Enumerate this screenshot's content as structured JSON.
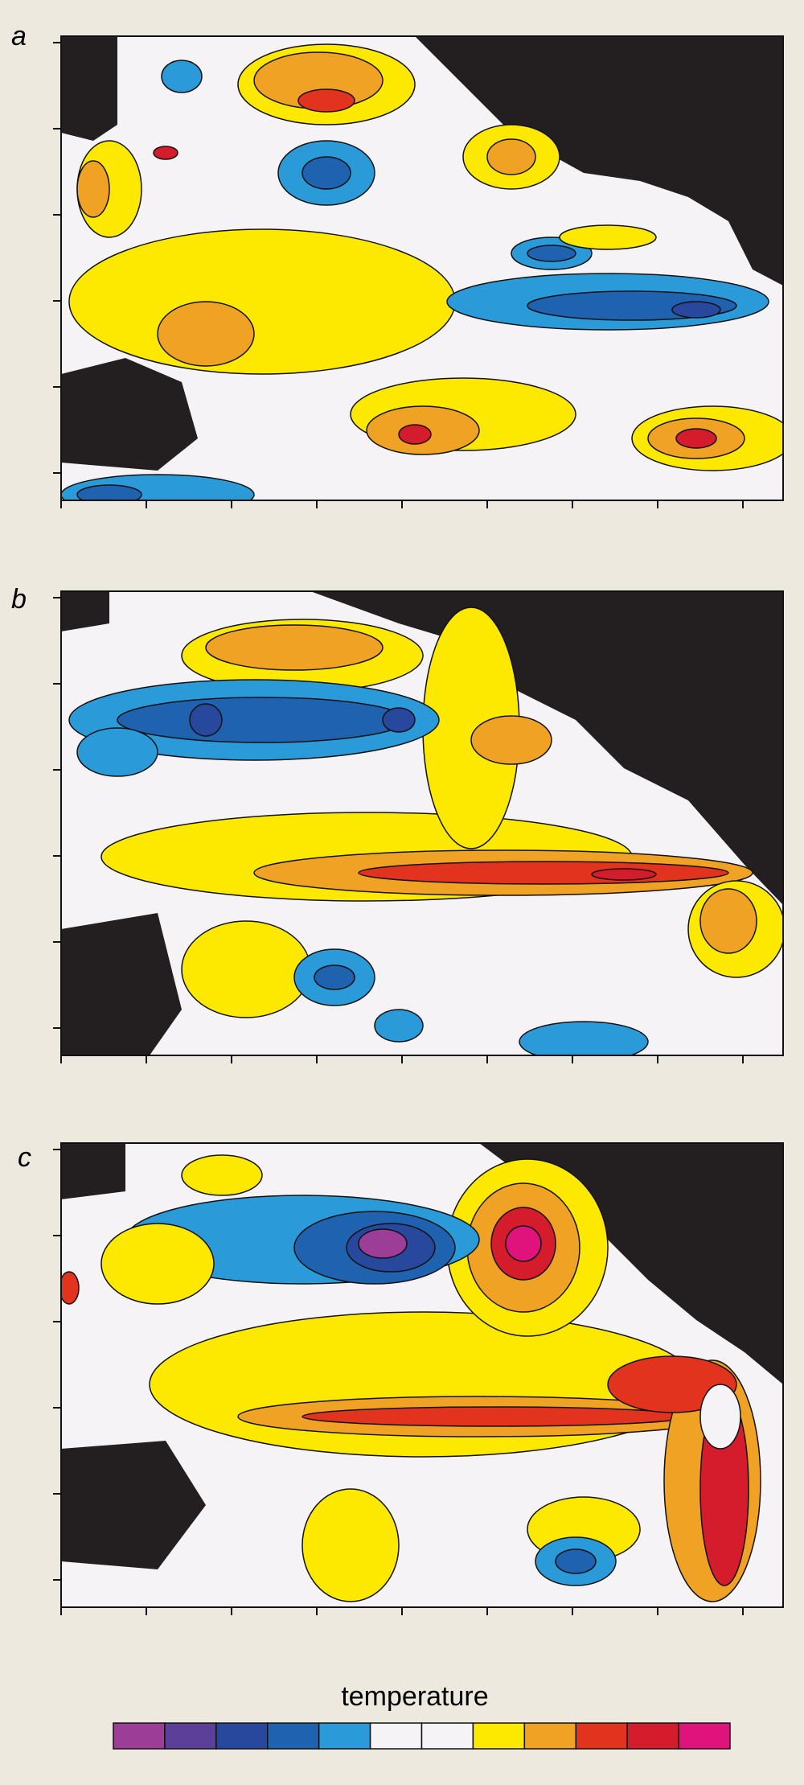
{
  "panels": [
    {
      "label": "a"
    },
    {
      "label": "b"
    },
    {
      "label": "c"
    }
  ],
  "colorbar": {
    "label": "temperature",
    "colors": [
      "#9c3d98",
      "#5b3f99",
      "#27489d",
      "#1f63b0",
      "#2b9ad8",
      "#f6f3f6",
      "#f6f3f6",
      "#fde800",
      "#f0a224",
      "#e2331f",
      "#d41c2c",
      "#e0127c"
    ]
  }
}
